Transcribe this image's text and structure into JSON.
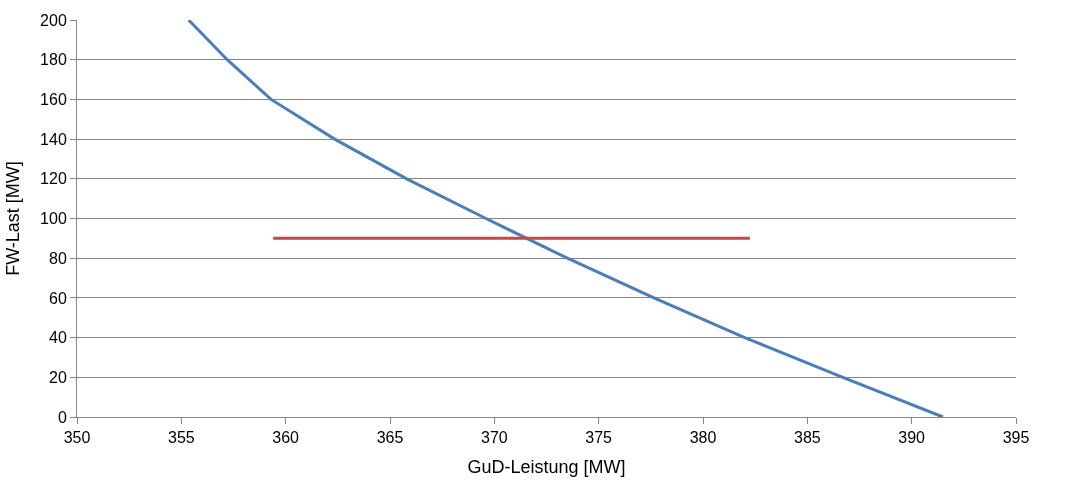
{
  "chart_data": {
    "type": "line",
    "xlabel": "GuD-Leistung [MW]",
    "ylabel": "FW-Last [MW]",
    "series": [
      {
        "color": "#4a7ebb",
        "x": [
          355.35,
          357.2,
          359.3,
          362.35,
          365.8,
          369.6,
          373.5,
          377.65,
          382.0,
          386.7,
          391.5
        ],
        "values": [
          200,
          180,
          160,
          140,
          120,
          100,
          80,
          60,
          40,
          20,
          0
        ]
      },
      {
        "color": "#be4b48",
        "x": [
          359.4,
          382.25
        ],
        "values": [
          90,
          90
        ]
      }
    ],
    "xlim": [
      350,
      395
    ],
    "xticks": [
      350,
      355,
      360,
      365,
      370,
      375,
      380,
      385,
      390,
      395
    ],
    "ylim": [
      0,
      200
    ],
    "yticks": [
      0,
      20,
      40,
      60,
      80,
      100,
      120,
      140,
      160,
      180,
      200
    ],
    "grid": "y",
    "marker": "none",
    "line_style": "solid"
  }
}
